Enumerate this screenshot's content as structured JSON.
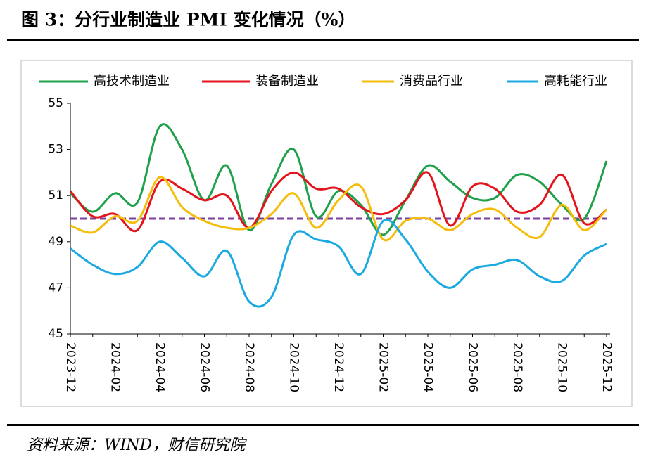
{
  "chart_data": {
    "type": "line",
    "title": "图 3：分行业制造业 PMI 变化情况（%）",
    "source": "资料来源：WIND，财信研究院",
    "categories": [
      "2023-12",
      null,
      "2024-02",
      null,
      "2024-04",
      null,
      "2024-06",
      null,
      "2024-08",
      null,
      "2024-10",
      null,
      "2024-12",
      null,
      "2025-02",
      null,
      "2025-04",
      null,
      "2025-06",
      null,
      "2025-08",
      null,
      "2025-10",
      null,
      "2025-12"
    ],
    "series": [
      {
        "name": "高技术制造业",
        "color": "#1fa04a",
        "values": [
          51.1,
          50.3,
          51.1,
          50.7,
          54.0,
          53.0,
          50.8,
          52.3,
          49.5,
          51.5,
          53.0,
          50.1,
          51.2,
          50.6,
          49.3,
          50.8,
          52.3,
          51.6,
          50.9,
          50.9,
          51.9,
          51.6,
          50.6,
          50.0,
          52.5
        ]
      },
      {
        "name": "装备制造业",
        "color": "#e3141b",
        "values": [
          51.2,
          50.1,
          50.2,
          49.5,
          51.6,
          51.3,
          50.8,
          51.0,
          49.6,
          51.2,
          52.0,
          51.3,
          51.3,
          50.5,
          50.2,
          50.8,
          52.0,
          49.7,
          51.4,
          51.3,
          50.3,
          50.6,
          51.9,
          49.8,
          50.4
        ]
      },
      {
        "name": "消费品行业",
        "color": "#f5bd0c",
        "values": [
          49.7,
          49.4,
          50.1,
          49.9,
          51.8,
          50.5,
          49.9,
          49.6,
          49.6,
          50.2,
          51.1,
          49.6,
          50.8,
          51.4,
          49.1,
          49.9,
          50.0,
          49.5,
          50.2,
          50.4,
          49.6,
          49.2,
          50.6,
          49.5,
          50.4
        ]
      },
      {
        "name": "高耗能行业",
        "color": "#1aa9e0",
        "values": [
          48.7,
          48.0,
          47.6,
          47.9,
          49.0,
          48.3,
          47.5,
          48.6,
          46.4,
          46.6,
          49.3,
          49.1,
          48.8,
          47.6,
          49.9,
          49.1,
          47.7,
          47.0,
          47.8,
          48.0,
          48.2,
          47.5,
          47.3,
          48.4,
          48.9
        ]
      }
    ],
    "reference_line": {
      "value": 50,
      "color": "#7b3fa0"
    },
    "ylim": [
      45,
      55
    ],
    "yticks": [
      45,
      47,
      49,
      51,
      53,
      55
    ]
  }
}
